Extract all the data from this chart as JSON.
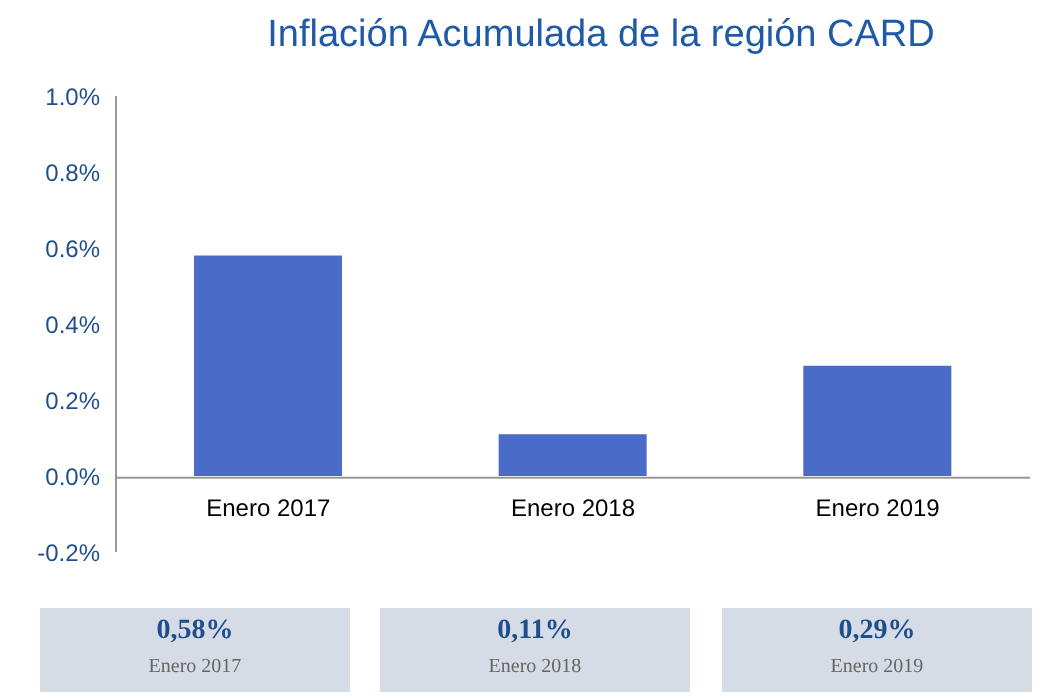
{
  "chart_data": {
    "type": "bar",
    "title": "Inflación Acumulada de la región CARD",
    "categories": [
      "Enero 2017",
      "Enero 2018",
      "Enero 2019"
    ],
    "values": [
      0.58,
      0.11,
      0.29
    ],
    "color": "#4a6bc8",
    "value_labels": [
      "0,58%",
      "0,11%",
      "0,29%"
    ],
    "ylim": [
      -0.2,
      1.0
    ],
    "yticks": [
      {
        "value": -0.2,
        "label": "-0.2%"
      },
      {
        "value": 0,
        "label": "0.0%"
      },
      {
        "value": 0.2,
        "label": "0.2%"
      },
      {
        "value": 0.4,
        "label": "0.4%"
      },
      {
        "value": 0.6,
        "label": "0.6%"
      },
      {
        "value": 0.8,
        "label": "0.8%"
      },
      {
        "value": 1.0,
        "label": "1.0%"
      }
    ],
    "grid": false,
    "legend": false
  }
}
